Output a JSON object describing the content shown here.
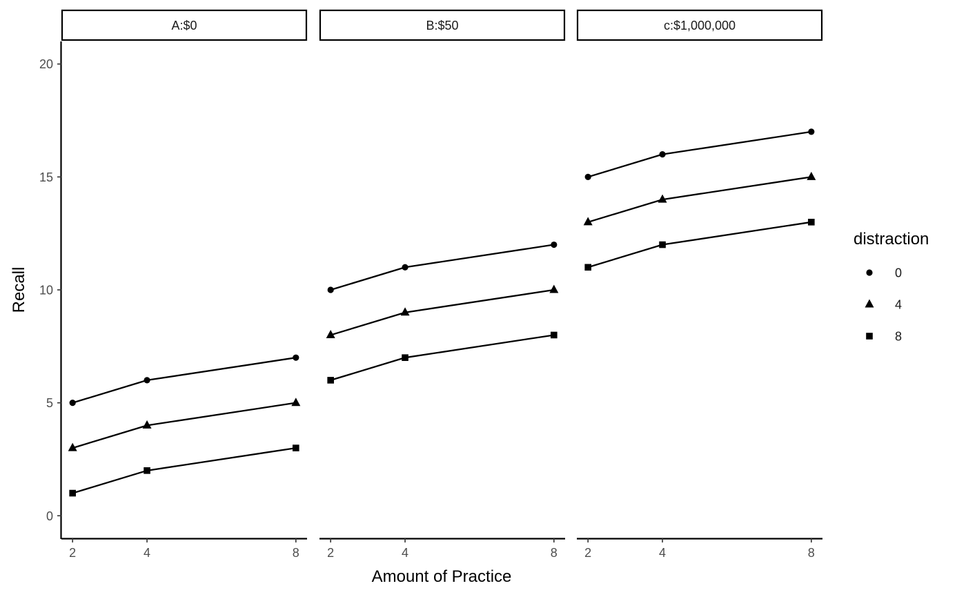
{
  "chart_data": {
    "type": "line",
    "facets": [
      {
        "label": "A:$0",
        "series": [
          {
            "name": "0",
            "x": [
              2,
              4,
              8
            ],
            "y": [
              5,
              6,
              7
            ]
          },
          {
            "name": "4",
            "x": [
              2,
              4,
              8
            ],
            "y": [
              3,
              4,
              5
            ]
          },
          {
            "name": "8",
            "x": [
              2,
              4,
              8
            ],
            "y": [
              1,
              2,
              3
            ]
          }
        ]
      },
      {
        "label": "B:$50",
        "series": [
          {
            "name": "0",
            "x": [
              2,
              4,
              8
            ],
            "y": [
              10,
              11,
              12
            ]
          },
          {
            "name": "4",
            "x": [
              2,
              4,
              8
            ],
            "y": [
              8,
              9,
              10
            ]
          },
          {
            "name": "8",
            "x": [
              2,
              4,
              8
            ],
            "y": [
              6,
              7,
              8
            ]
          }
        ]
      },
      {
        "label": "c:$1,000,000",
        "series": [
          {
            "name": "0",
            "x": [
              2,
              4,
              8
            ],
            "y": [
              15,
              16,
              17
            ]
          },
          {
            "name": "4",
            "x": [
              2,
              4,
              8
            ],
            "y": [
              13,
              14,
              15
            ]
          },
          {
            "name": "8",
            "x": [
              2,
              4,
              8
            ],
            "y": [
              11,
              12,
              13
            ]
          }
        ]
      }
    ],
    "xlabel": "Amount of Practice",
    "ylabel": "Recall",
    "xticks": [
      2,
      4,
      8
    ],
    "yticks": [
      0,
      5,
      10,
      15,
      20
    ],
    "xlim": [
      1.7,
      8.3
    ],
    "ylim": [
      -1,
      21
    ],
    "grid": false,
    "legend": {
      "title": "distraction",
      "position": "right",
      "entries": [
        {
          "label": "0",
          "shape": "circle"
        },
        {
          "label": "4",
          "shape": "triangle"
        },
        {
          "label": "8",
          "shape": "square"
        }
      ]
    },
    "colors": {
      "line": "#000000",
      "axis": "#000000",
      "tick_text": "#4d4d4d"
    }
  }
}
